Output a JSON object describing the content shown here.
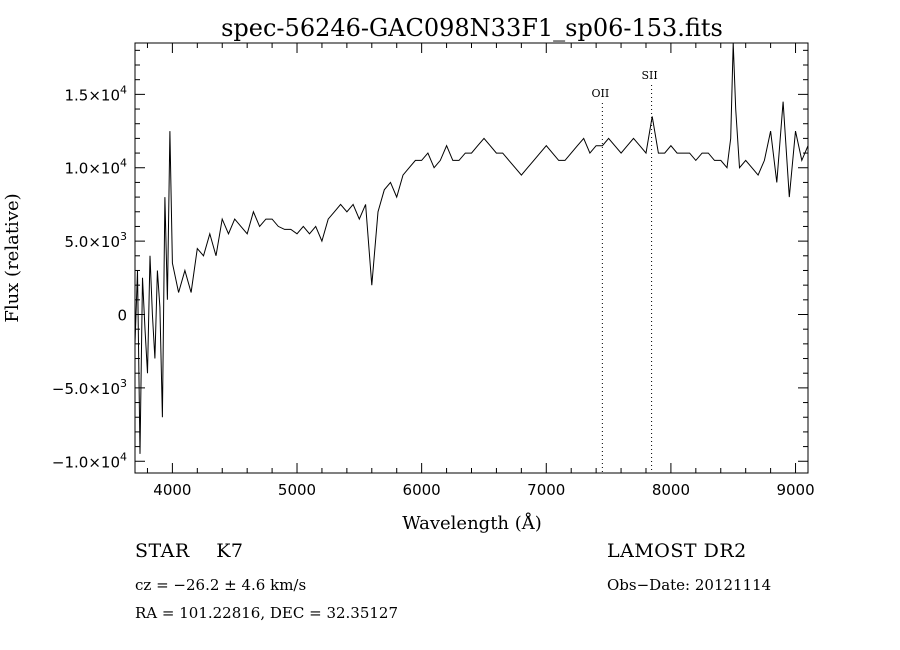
{
  "chart_data": {
    "type": "line",
    "title": "spec-56246-GAC098N33F1_sp06-153.fits",
    "xlabel": "Wavelength (Å)",
    "ylabel": "Flux (relative)",
    "xlim": [
      3700,
      9100
    ],
    "ylim": [
      -10800,
      18500
    ],
    "x_ticks": [
      4000,
      5000,
      6000,
      7000,
      8000,
      9000
    ],
    "x_tick_labels": [
      "4000",
      "5000",
      "6000",
      "7000",
      "8000",
      "9000"
    ],
    "y_ticks": [
      -10000,
      -5000,
      0,
      5000,
      10000,
      15000
    ],
    "y_tick_labels": [
      {
        "mantissa": "−1.0×10",
        "exp": "4"
      },
      {
        "mantissa": "−5.0×10",
        "exp": "3"
      },
      {
        "mantissa": "0",
        "exp": ""
      },
      {
        "mantissa": "5.0×10",
        "exp": "3"
      },
      {
        "mantissa": "1.0×10",
        "exp": "4"
      },
      {
        "mantissa": "1.5×10",
        "exp": "4"
      }
    ],
    "lines": [
      {
        "name": "OII",
        "x": 7450
      },
      {
        "name": "SII",
        "x": 7845
      }
    ],
    "series": [
      {
        "x": [
          3700,
          3720,
          3740,
          3760,
          3780,
          3800,
          3820,
          3840,
          3860,
          3880,
          3900,
          3920,
          3940,
          3960,
          3980,
          4000,
          4050,
          4100,
          4150,
          4200,
          4250,
          4300,
          4350,
          4400,
          4450,
          4500,
          4550,
          4600,
          4650,
          4700,
          4750,
          4800,
          4850,
          4900,
          4950,
          5000,
          5050,
          5100,
          5150,
          5200,
          5250,
          5300,
          5350,
          5400,
          5450,
          5500,
          5550,
          5600,
          5650,
          5700,
          5750,
          5800,
          5850,
          5900,
          5950,
          6000,
          6050,
          6100,
          6150,
          6200,
          6250,
          6300,
          6350,
          6400,
          6450,
          6500,
          6550,
          6600,
          6650,
          6700,
          6750,
          6800,
          6850,
          6900,
          6950,
          7000,
          7050,
          7100,
          7150,
          7200,
          7250,
          7300,
          7350,
          7400,
          7450,
          7500,
          7550,
          7600,
          7650,
          7700,
          7750,
          7800,
          7850,
          7900,
          7950,
          8000,
          8050,
          8100,
          8150,
          8200,
          8250,
          8300,
          8350,
          8400,
          8450,
          8480,
          8500,
          8520,
          8550,
          8600,
          8650,
          8700,
          8750,
          8800,
          8850,
          8900,
          8950,
          9000,
          9050,
          9100
        ],
        "values": [
          -2000,
          3000,
          -9500,
          2500,
          -1000,
          -4000,
          4000,
          0,
          -3000,
          3000,
          500,
          -7000,
          8000,
          1000,
          12500,
          3500,
          1500,
          3000,
          1500,
          4500,
          4000,
          5500,
          4000,
          6500,
          5500,
          6500,
          6000,
          5500,
          7000,
          6000,
          6500,
          6500,
          6000,
          5800,
          5800,
          5500,
          6000,
          5500,
          6000,
          5000,
          6500,
          7000,
          7500,
          7000,
          7500,
          6500,
          7500,
          2000,
          7000,
          8500,
          9000,
          8000,
          9500,
          10000,
          10500,
          10500,
          11000,
          10000,
          10500,
          11500,
          10500,
          10500,
          11000,
          11000,
          11500,
          12000,
          11500,
          11000,
          11000,
          10500,
          10000,
          9500,
          10000,
          10500,
          11000,
          11500,
          11000,
          10500,
          10500,
          11000,
          11500,
          12000,
          11000,
          11500,
          11500,
          12000,
          11500,
          11000,
          11500,
          12000,
          11500,
          11000,
          13500,
          11000,
          11000,
          11500,
          11000,
          11000,
          11000,
          10500,
          11000,
          11000,
          10500,
          10500,
          10000,
          12000,
          19000,
          14000,
          10000,
          10500,
          10000,
          9500,
          10500,
          12500,
          9000,
          14500,
          8000,
          12500,
          10500,
          11500
        ]
      }
    ]
  },
  "footer": {
    "class_label": "STAR",
    "subclass": "K7",
    "cz_text": "cz = −26.2 ± 4.6 km/s",
    "radec_text": "RA = 101.22816, DEC =  32.35127",
    "survey": "LAMOST DR2",
    "obs_date_text": "Obs−Date: 20121114"
  }
}
